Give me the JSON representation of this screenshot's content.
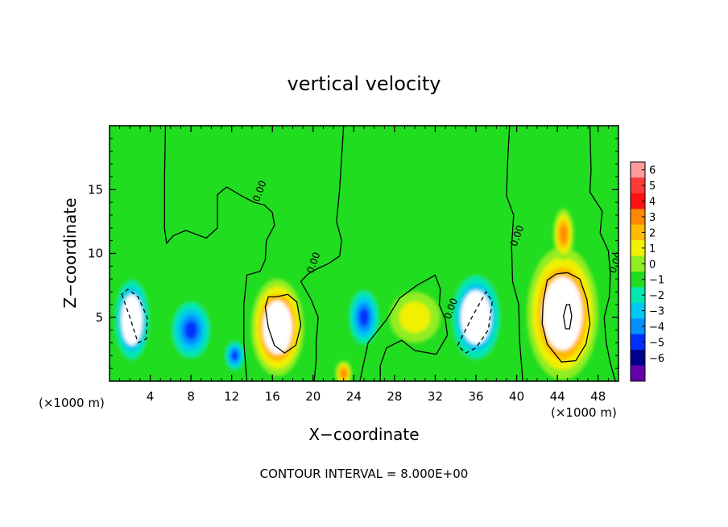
{
  "chart_data": {
    "type": "heatmap",
    "title": "vertical velocity",
    "xlabel": "X−coordinate",
    "ylabel": "Z−coordinate",
    "x_unit_left": "(×1000 m)",
    "x_unit_right": "(×1000 m)",
    "xlim": [
      0,
      50
    ],
    "ylim": [
      0,
      20
    ],
    "x_ticks": [
      {
        "value": 4,
        "label": "4"
      },
      {
        "value": 8,
        "label": "8"
      },
      {
        "value": 12,
        "label": "12"
      },
      {
        "value": 16,
        "label": "16"
      },
      {
        "value": 20,
        "label": "20"
      },
      {
        "value": 24,
        "label": "24"
      },
      {
        "value": 28,
        "label": "28"
      },
      {
        "value": 32,
        "label": "32"
      },
      {
        "value": 36,
        "label": "36"
      },
      {
        "value": 40,
        "label": "40"
      },
      {
        "value": 44,
        "label": "44"
      },
      {
        "value": 48,
        "label": "48"
      }
    ],
    "y_ticks": [
      {
        "value": 5,
        "label": "5"
      },
      {
        "value": 10,
        "label": "10"
      },
      {
        "value": 15,
        "label": "15"
      }
    ],
    "colorbar": {
      "levels": [
        6,
        5,
        4,
        3,
        2,
        1,
        0,
        -1,
        -2,
        -3,
        -4,
        -5,
        -6
      ],
      "labels": [
        "6",
        "5",
        "4",
        "3",
        "2",
        "1",
        "0",
        "−1",
        "−2",
        "−3",
        "−4",
        "−5",
        "−6"
      ],
      "colors": [
        "#ff9a9a",
        "#ff3a3a",
        "#ff1010",
        "#ff8800",
        "#ffbb00",
        "#f0f000",
        "#90ee20",
        "#20dd20",
        "#00e8b0",
        "#00c8f0",
        "#0090ff",
        "#0030ff",
        "#000090",
        "#6600aa"
      ]
    },
    "features": [
      {
        "kind": "updraft",
        "x": 16.5,
        "z": 4.2,
        "peak": 6,
        "rx": 2.6,
        "rz": 3.8
      },
      {
        "kind": "updraft",
        "x": 44.5,
        "z": 5.3,
        "peak": 6,
        "rx": 3.5,
        "rz": 5.2
      },
      {
        "kind": "updraft",
        "x": 44.6,
        "z": 11.5,
        "peak": 4,
        "rx": 1.0,
        "rz": 2.0
      },
      {
        "kind": "updraft",
        "x": 23.0,
        "z": 0.6,
        "peak": 4,
        "rx": 0.8,
        "rz": 1.0
      },
      {
        "kind": "updraft",
        "x": 30.0,
        "z": 5.0,
        "peak": 1.5,
        "rx": 2.5,
        "rz": 2.0
      },
      {
        "kind": "downdraft",
        "x": 2.2,
        "z": 4.8,
        "peak": -6,
        "rx": 1.9,
        "rz": 3.6
      },
      {
        "kind": "downdraft",
        "x": 8.0,
        "z": 4.0,
        "peak": -5,
        "rx": 2.2,
        "rz": 2.6
      },
      {
        "kind": "downdraft",
        "x": 12.3,
        "z": 2.0,
        "peak": -5,
        "rx": 1.1,
        "rz": 1.3
      },
      {
        "kind": "downdraft",
        "x": 25.0,
        "z": 5.0,
        "peak": -5,
        "rx": 1.7,
        "rz": 2.5
      },
      {
        "kind": "downdraft",
        "x": 36.0,
        "z": 5.0,
        "peak": -6,
        "rx": 2.7,
        "rz": 3.8
      }
    ],
    "contours": [
      {
        "label": "0.00",
        "style": "solid",
        "points": [
          [
            5.5,
            20
          ],
          [
            5.4,
            16
          ],
          [
            5.4,
            12
          ],
          [
            5.6,
            10.8
          ],
          [
            6.3,
            11.4
          ],
          [
            7.5,
            11.8
          ],
          [
            9.5,
            11.2
          ],
          [
            10.6,
            12
          ],
          [
            10.6,
            14.6
          ],
          [
            11.5,
            15.2
          ],
          [
            13,
            14.5
          ],
          [
            14.2,
            14
          ],
          [
            15.2,
            13.8
          ],
          [
            16,
            13.2
          ],
          [
            16.2,
            12.2
          ],
          [
            15.4,
            11
          ],
          [
            15.3,
            9.5
          ],
          [
            14.8,
            8.6
          ],
          [
            13.5,
            8.3
          ],
          [
            13.2,
            6
          ],
          [
            13.2,
            3
          ],
          [
            13.5,
            0
          ]
        ]
      },
      {
        "label": "0.00",
        "style": "solid",
        "points": [
          [
            23,
            20
          ],
          [
            22.6,
            15
          ],
          [
            22.3,
            12.5
          ],
          [
            22.8,
            11
          ],
          [
            22.6,
            9.8
          ],
          [
            21.5,
            9.2
          ],
          [
            20.4,
            8.8
          ],
          [
            19.5,
            8.4
          ],
          [
            18.8,
            7.8
          ],
          [
            19.8,
            6.4
          ],
          [
            20.5,
            5
          ],
          [
            20.3,
            3
          ],
          [
            20.3,
            1.6
          ],
          [
            20.1,
            0
          ]
        ]
      },
      {
        "label": "0.00",
        "style": "solid",
        "points": [
          [
            39.3,
            20
          ],
          [
            39.1,
            17
          ],
          [
            39.0,
            14.5
          ],
          [
            39.7,
            13
          ],
          [
            39.5,
            10.5
          ],
          [
            39.6,
            7.8
          ],
          [
            40.2,
            6
          ],
          [
            40.3,
            3
          ],
          [
            40.6,
            0
          ]
        ]
      },
      {
        "label": "0.00",
        "style": "solid",
        "points": [
          [
            47.2,
            20
          ],
          [
            47.3,
            16.5
          ],
          [
            47.2,
            14.8
          ],
          [
            48.4,
            13.3
          ],
          [
            48.2,
            11.6
          ],
          [
            49.0,
            10.2
          ],
          [
            49.2,
            8.4
          ],
          [
            49.1,
            6.6
          ],
          [
            48.6,
            5
          ],
          [
            48.8,
            3
          ],
          [
            49.2,
            1.4
          ],
          [
            49.7,
            0
          ]
        ]
      },
      {
        "label": "0.00",
        "style": "solid",
        "points": [
          [
            24.6,
            0
          ],
          [
            25.4,
            3
          ],
          [
            27.2,
            4.8
          ],
          [
            28.5,
            6.5
          ],
          [
            30.2,
            7.5
          ],
          [
            32,
            8.3
          ],
          [
            32.5,
            7.2
          ],
          [
            32.4,
            6
          ],
          [
            33,
            4.8
          ],
          [
            33.2,
            3.6
          ],
          [
            32.1,
            2.1
          ],
          [
            30,
            2.4
          ],
          [
            28.7,
            3.2
          ],
          [
            27.2,
            2.6
          ],
          [
            26.6,
            1.2
          ],
          [
            26.6,
            0
          ]
        ]
      },
      {
        "label": "",
        "style": "solid",
        "points": [
          [
            15.3,
            5.8
          ],
          [
            15.6,
            4.2
          ],
          [
            16.2,
            2.8
          ],
          [
            17.2,
            2.2
          ],
          [
            18.3,
            2.8
          ],
          [
            18.8,
            4.4
          ],
          [
            18.4,
            6.2
          ],
          [
            17.5,
            6.8
          ],
          [
            16.4,
            6.6
          ],
          [
            15.6,
            6.6
          ]
        ]
      },
      {
        "label": "",
        "style": "solid",
        "points": [
          [
            43.0,
            7.9
          ],
          [
            42.6,
            6.2
          ],
          [
            42.5,
            4.5
          ],
          [
            43.0,
            2.9
          ],
          [
            44.4,
            1.5
          ],
          [
            45.8,
            1.6
          ],
          [
            46.8,
            2.9
          ],
          [
            47.2,
            4.5
          ],
          [
            46.9,
            6.4
          ],
          [
            46.2,
            8.0
          ],
          [
            45.0,
            8.5
          ],
          [
            43.9,
            8.4
          ]
        ]
      },
      {
        "label": "",
        "style": "solid",
        "points": [
          [
            44.9,
            6.0
          ],
          [
            44.6,
            5.1
          ],
          [
            44.8,
            4.1
          ],
          [
            45.2,
            4.1
          ],
          [
            45.4,
            5.1
          ],
          [
            45.2,
            6.0
          ]
        ]
      },
      {
        "label": "",
        "style": "dashed",
        "points": [
          [
            1.2,
            6.8
          ],
          [
            2.0,
            5.0
          ],
          [
            2.8,
            3.0
          ],
          [
            3.6,
            3.3
          ],
          [
            3.7,
            5.0
          ],
          [
            2.8,
            6.6
          ],
          [
            1.8,
            7.2
          ]
        ]
      },
      {
        "label": "",
        "style": "dashed",
        "points": [
          [
            34.2,
            2.8
          ],
          [
            35.6,
            5.0
          ],
          [
            37.0,
            7.0
          ],
          [
            37.6,
            6.2
          ],
          [
            37.2,
            4.0
          ],
          [
            36.0,
            2.6
          ],
          [
            35.0,
            2.2
          ]
        ]
      }
    ],
    "grid": false,
    "legend": "right"
  },
  "footer": {
    "contour_interval": "CONTOUR INTERVAL = 8.000E+00"
  }
}
